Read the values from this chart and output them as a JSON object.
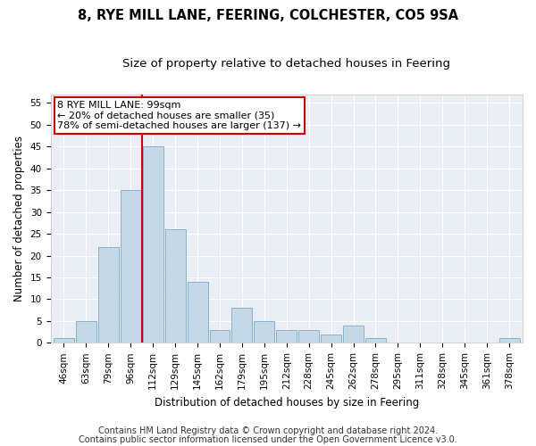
{
  "title1": "8, RYE MILL LANE, FEERING, COLCHESTER, CO5 9SA",
  "title2": "Size of property relative to detached houses in Feering",
  "xlabel": "Distribution of detached houses by size in Feering",
  "ylabel": "Number of detached properties",
  "categories": [
    "46sqm",
    "63sqm",
    "79sqm",
    "96sqm",
    "112sqm",
    "129sqm",
    "145sqm",
    "162sqm",
    "179sqm",
    "195sqm",
    "212sqm",
    "228sqm",
    "245sqm",
    "262sqm",
    "278sqm",
    "295sqm",
    "311sqm",
    "328sqm",
    "345sqm",
    "361sqm",
    "378sqm"
  ],
  "values": [
    1,
    5,
    22,
    35,
    45,
    26,
    14,
    3,
    8,
    5,
    3,
    3,
    2,
    4,
    1,
    0,
    0,
    0,
    0,
    0,
    1
  ],
  "bar_color": "#c5d8e8",
  "bar_edge_color": "#8ab0cc",
  "marker_label": "8 RYE MILL LANE: 99sqm",
  "annotation_line1": "← 20% of detached houses are smaller (35)",
  "annotation_line2": "78% of semi-detached houses are larger (137) →",
  "annotation_box_color": "#ffffff",
  "annotation_box_edge": "#cc0000",
  "vline_color": "#cc0000",
  "vline_x": 3.5,
  "ylim": [
    0,
    57
  ],
  "yticks": [
    0,
    5,
    10,
    15,
    20,
    25,
    30,
    35,
    40,
    45,
    50,
    55
  ],
  "footnote1": "Contains HM Land Registry data © Crown copyright and database right 2024.",
  "footnote2": "Contains public sector information licensed under the Open Government Licence v3.0.",
  "fig_bg_color": "#ffffff",
  "plot_bg_color": "#e8eef4",
  "grid_color": "#ffffff",
  "title_fontsize": 10.5,
  "subtitle_fontsize": 9.5,
  "axis_label_fontsize": 8.5,
  "tick_fontsize": 7.5,
  "annotation_fontsize": 8,
  "footnote_fontsize": 7
}
